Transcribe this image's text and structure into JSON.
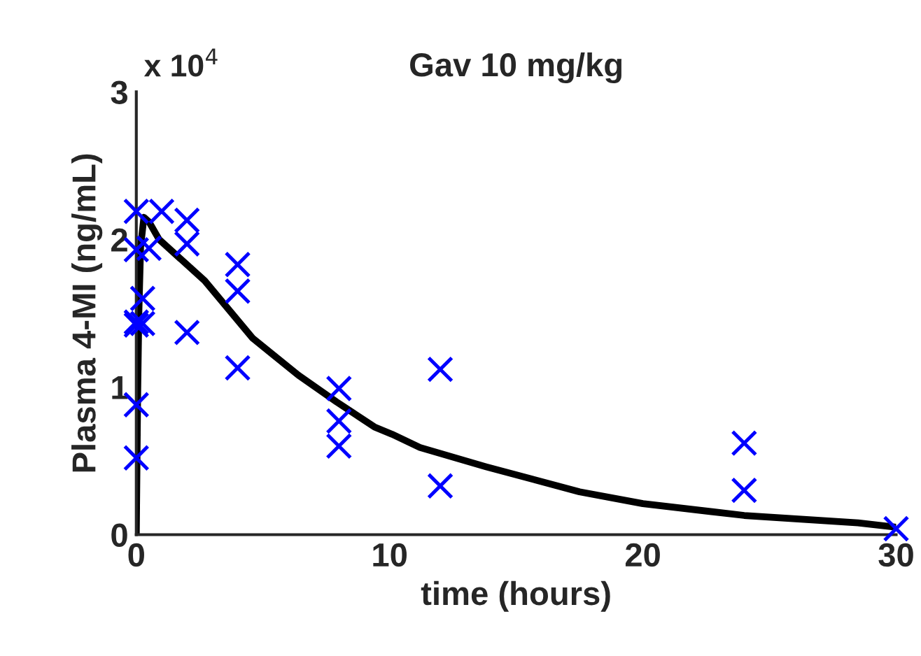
{
  "chart_data": {
    "type": "scatter",
    "title": "Gav 10 mg/kg",
    "xlabel": "time (hours)",
    "ylabel": "Plasma 4-MI (ng/mL)",
    "annotations": [
      "x 10$^{4}$"
    ],
    "series": [
      {
        "color": "#0000ff",
        "marker": "cross",
        "x": [
          0,
          0,
          0,
          0,
          0,
          0,
          0.25,
          0.25,
          0.5,
          1,
          2,
          2,
          2,
          4,
          4,
          4,
          8,
          8,
          8,
          12,
          12,
          24,
          24,
          30
        ],
        "values": [
          2.19,
          1.93,
          1.44,
          0.88,
          0.52,
          1.42,
          1.6,
          1.43,
          1.94,
          2.19,
          2.13,
          1.97,
          1.37,
          1.83,
          1.65,
          1.13,
          0.99,
          0.77,
          0.6,
          1.12,
          0.33,
          0.62,
          0.3,
          0.04
        ]
      },
      {
        "type": "line",
        "color": "#000000",
        "marker": "none",
        "x": [
          0,
          0.05,
          0.1,
          0.17,
          0.3,
          0.5,
          0.9,
          2.7,
          4.6,
          6.4,
          7.9,
          9.4,
          10.1,
          11.2,
          13.8,
          17.5,
          20,
          24,
          28.5,
          30
        ],
        "values": [
          0,
          0.9,
          1.5,
          1.95,
          2.15,
          2.12,
          2.0,
          1.72,
          1.33,
          1.08,
          0.9,
          0.73,
          0.68,
          0.59,
          0.46,
          0.29,
          0.21,
          0.13,
          0.08,
          0.05
        ]
      }
    ],
    "xlim": [
      0,
      30
    ],
    "xticks": [
      0,
      10,
      20,
      30
    ],
    "ylim": [
      0,
      3
    ],
    "yticks": [
      0,
      1,
      2,
      3
    ],
    "grid": false,
    "legend": false
  }
}
